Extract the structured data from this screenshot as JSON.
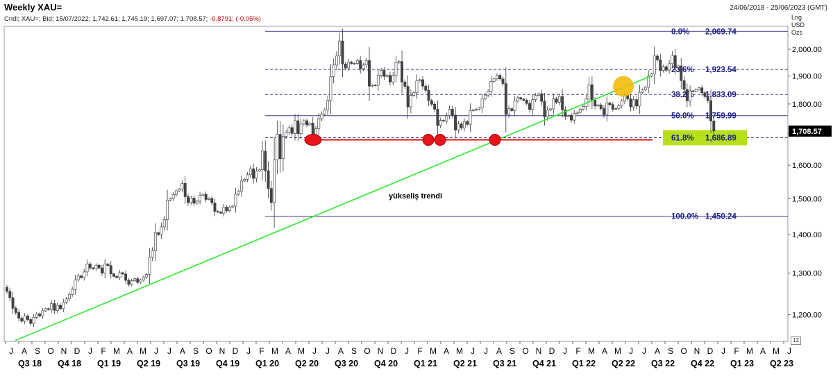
{
  "header": {
    "title": "Weekly XAU=",
    "date_range": "24/06/2018 - 25/06/2023 (GMT)",
    "info_prefix": "Cndl; XAU=; Bid; 15/07/2022; 1,742.61; 1,745.19; 1,697.07; 1,708.57;",
    "info_change": "-0.8791; (-0.05%)",
    "scale_tags": [
      "Log",
      "USD",
      "Ozs"
    ],
    "corner_tag": "12"
  },
  "chart_data": {
    "type": "candlestick",
    "title": "Weekly XAU=",
    "y_scale": "log",
    "ylim": [
      1140,
      2090
    ],
    "y_ticks": [
      {
        "value": 2000,
        "label": "2,000.00"
      },
      {
        "value": 1900,
        "label": "1,900.00"
      },
      {
        "value": 1800,
        "label": "1,800.00"
      },
      {
        "value": 1700,
        "label": "1,700.00"
      },
      {
        "value": 1600,
        "label": "1,600.00"
      },
      {
        "value": 1500,
        "label": "1,500.00"
      },
      {
        "value": 1400,
        "label": "1,400.00"
      },
      {
        "value": 1300,
        "label": "1,300.00"
      },
      {
        "value": 1200,
        "label": "1,200.00"
      }
    ],
    "last_price": {
      "value": 1708.57,
      "label": "1,708.57"
    },
    "months": [
      "J",
      "A",
      "S",
      "O",
      "N",
      "D",
      "J",
      "F",
      "M",
      "A",
      "M",
      "J",
      "J",
      "A",
      "S",
      "O",
      "N",
      "D",
      "J",
      "F",
      "M",
      "A",
      "M",
      "J",
      "J",
      "A",
      "S",
      "O",
      "N",
      "D",
      "J",
      "F",
      "M",
      "A",
      "M",
      "J",
      "J",
      "A",
      "S",
      "O",
      "N",
      "D",
      "J",
      "F",
      "M",
      "A",
      "M",
      "J",
      "J",
      "A",
      "S",
      "O",
      "N",
      "D",
      "J",
      "F",
      "M",
      "A",
      "M",
      "J"
    ],
    "quarters": [
      "Q3 18",
      "Q4 18",
      "Q1 19",
      "Q2 19",
      "Q3 19",
      "Q4 19",
      "Q1 20",
      "Q2 20",
      "Q3 20",
      "Q4 20",
      "Q1 21",
      "Q2 21",
      "Q3 21",
      "Q4 21",
      "Q1 22",
      "Q2 22",
      "Q3 22",
      "Q4 22",
      "Q1 23",
      "Q2 23"
    ],
    "fib_levels": [
      {
        "pct": "0.0%",
        "value": 2069.74,
        "label": "2,069.74",
        "dashed": false
      },
      {
        "pct": "23.6%",
        "value": 1923.54,
        "label": "1,923.54",
        "dashed": true
      },
      {
        "pct": "38.2%",
        "value": 1833.09,
        "label": "1,833.09",
        "dashed": true
      },
      {
        "pct": "50.0%",
        "value": 1759.99,
        "label": "1,759.99",
        "dashed": false
      },
      {
        "pct": "61.8%",
        "value": 1686.89,
        "label": "1,686.89",
        "dashed": true,
        "highlight": "#b7e01a"
      },
      {
        "pct": "100.0%",
        "value": 1450.24,
        "label": "1,450.24",
        "dashed": false
      }
    ],
    "support_level": {
      "value": 1680,
      "color": "#d8141c"
    },
    "support_touches": [
      "2020-06",
      "2021-03",
      "2021-03b",
      "2021-08"
    ],
    "trendline": {
      "label": "yükseliş trendi",
      "color": "#2ee82e",
      "start": {
        "week": 1,
        "value": 1142
      },
      "end": {
        "week": 240,
        "value": 1900
      }
    },
    "highlight_circle": {
      "week": 225,
      "value": 1862,
      "color": "#f5b800"
    },
    "weekly_close": [
      1255,
      1240,
      1215,
      1205,
      1192,
      1185,
      1197,
      1189,
      1180,
      1194,
      1202,
      1197,
      1209,
      1214,
      1212,
      1226,
      1210,
      1222,
      1214,
      1229,
      1237,
      1248,
      1260,
      1283,
      1293,
      1289,
      1303,
      1323,
      1313,
      1311,
      1320,
      1313,
      1300,
      1323,
      1319,
      1298,
      1292,
      1289,
      1301,
      1298,
      1282,
      1272,
      1281,
      1286,
      1277,
      1283,
      1290,
      1297,
      1340,
      1357,
      1405,
      1400,
      1421,
      1441,
      1496,
      1500,
      1512,
      1523,
      1528,
      1545,
      1506,
      1489,
      1502,
      1487,
      1493,
      1510,
      1513,
      1498,
      1501,
      1488,
      1464,
      1462,
      1459,
      1476,
      1466,
      1476,
      1479,
      1513,
      1522,
      1552,
      1557,
      1571,
      1589,
      1560,
      1582,
      1586,
      1644,
      1583,
      1530,
      1489,
      1617,
      1698,
      1620,
      1691,
      1705,
      1720,
      1701,
      1743,
      1700,
      1732,
      1743,
      1729,
      1735,
      1698,
      1716,
      1750,
      1766,
      1780,
      1812,
      1897,
      1940,
      1974,
      2032,
      1944,
      1929,
      1951,
      1946,
      1946,
      1957,
      1926,
      1940,
      1957,
      1863,
      1866,
      1866,
      1902,
      1920,
      1898,
      1902,
      1878,
      1901,
      1949,
      1953,
      1878,
      1862,
      1790,
      1830,
      1840,
      1882,
      1886,
      1863,
      1848,
      1812,
      1799,
      1782,
      1727,
      1744,
      1742,
      1760,
      1782,
      1762,
      1712,
      1732,
      1719,
      1740,
      1731,
      1777,
      1780,
      1782,
      1786,
      1818,
      1831,
      1845,
      1880,
      1889,
      1902,
      1889,
      1872,
      1764,
      1784,
      1777,
      1810,
      1822,
      1817,
      1813,
      1802,
      1781,
      1815,
      1830,
      1836,
      1809,
      1756,
      1779,
      1783,
      1818,
      1806,
      1826,
      1780,
      1758,
      1761,
      1745,
      1767,
      1771,
      1782,
      1791,
      1817,
      1868,
      1813,
      1793,
      1797,
      1784,
      1763,
      1804,
      1798,
      1782,
      1784,
      1794,
      1810,
      1830,
      1818,
      1790,
      1815,
      1793,
      1841,
      1850,
      1859,
      1899,
      1907,
      1974,
      1960,
      1920,
      1934,
      1921,
      1945,
      1976,
      1931,
      1937,
      1883,
      1851,
      1811,
      1846,
      1845,
      1851,
      1857,
      1839,
      1826,
      1812,
      1742,
      1709
    ]
  }
}
